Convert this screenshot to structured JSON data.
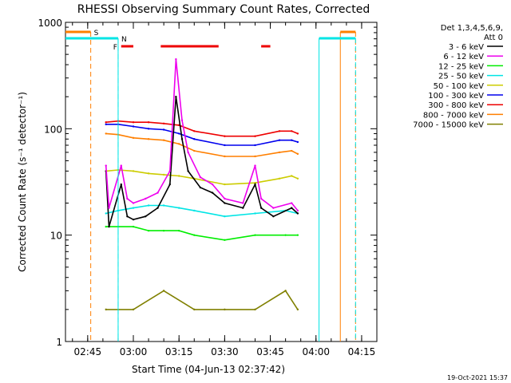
{
  "chart_data": {
    "type": "line",
    "title": "RHESSI Observing Summary Count Rates, Corrected",
    "xlabel": "Start Time (04-Jun-13 02:37:42)",
    "ylabel": "Corrected Count Rate (s⁻¹ detector⁻¹)",
    "x_ticks": [
      "02:45",
      "03:00",
      "03:15",
      "03:30",
      "03:45",
      "04:00",
      "04:15"
    ],
    "x_range": [
      "02:37:42",
      "04:20:00"
    ],
    "y_scale": "log",
    "ylim": [
      1,
      1000
    ],
    "y_ticks": [
      "1",
      "10",
      "100",
      "1000"
    ],
    "legend_header": [
      "Det 1,3,4,5,6,9,",
      "Att 0"
    ],
    "legend_position": "right",
    "timestamp": "19-Oct-2021 15:37",
    "flags": {
      "S": {
        "label": "S",
        "color": "#ff7f00",
        "start": "02:37:42",
        "end": "02:46",
        "end2_start": "04:08",
        "end2_end": "04:13"
      },
      "N": {
        "label": "N",
        "color": "#00e5e5",
        "start": "02:37:42",
        "end": "02:55",
        "end2_start": "04:01",
        "end2_end": "04:13"
      },
      "F": {
        "label": "F",
        "color": "#ee0000",
        "segments": [
          [
            "02:56",
            "03:00"
          ],
          [
            "03:09",
            "03:28"
          ],
          [
            "03:42",
            "03:45"
          ]
        ]
      }
    },
    "series": [
      {
        "name": "3 - 6 keV",
        "color": "#000000",
        "points": [
          [
            "02:51",
            40
          ],
          [
            "02:52",
            12
          ],
          [
            "02:56",
            30
          ],
          [
            "02:58",
            15
          ],
          [
            "03:00",
            14
          ],
          [
            "03:04",
            15
          ],
          [
            "03:08",
            18
          ],
          [
            "03:12",
            30
          ],
          [
            "03:14",
            200
          ],
          [
            "03:16",
            80
          ],
          [
            "03:18",
            40
          ],
          [
            "03:22",
            28
          ],
          [
            "03:26",
            25
          ],
          [
            "03:30",
            20
          ],
          [
            "03:36",
            18
          ],
          [
            "03:40",
            30
          ],
          [
            "03:42",
            18
          ],
          [
            "03:46",
            15
          ],
          [
            "03:52",
            18
          ],
          [
            "03:54",
            16
          ]
        ]
      },
      {
        "name": "6 - 12 keV",
        "color": "#ee00ee",
        "points": [
          [
            "02:51",
            45
          ],
          [
            "02:52",
            18
          ],
          [
            "02:56",
            45
          ],
          [
            "02:58",
            22
          ],
          [
            "03:00",
            20
          ],
          [
            "03:04",
            22
          ],
          [
            "03:08",
            25
          ],
          [
            "03:12",
            40
          ],
          [
            "03:14",
            450
          ],
          [
            "03:16",
            120
          ],
          [
            "03:18",
            60
          ],
          [
            "03:22",
            35
          ],
          [
            "03:26",
            30
          ],
          [
            "03:30",
            22
          ],
          [
            "03:36",
            20
          ],
          [
            "03:40",
            45
          ],
          [
            "03:42",
            22
          ],
          [
            "03:46",
            18
          ],
          [
            "03:52",
            20
          ],
          [
            "03:54",
            17
          ]
        ]
      },
      {
        "name": "12 - 25 keV",
        "color": "#00ee00",
        "points": [
          [
            "02:51",
            12
          ],
          [
            "02:55",
            12
          ],
          [
            "03:00",
            12
          ],
          [
            "03:05",
            11
          ],
          [
            "03:10",
            11
          ],
          [
            "03:15",
            11
          ],
          [
            "03:20",
            10
          ],
          [
            "03:30",
            9
          ],
          [
            "03:40",
            10
          ],
          [
            "03:50",
            10
          ],
          [
            "03:54",
            10
          ]
        ]
      },
      {
        "name": "25 - 50 keV",
        "color": "#00e5e5",
        "points": [
          [
            "02:51",
            16
          ],
          [
            "02:55",
            17
          ],
          [
            "03:00",
            18
          ],
          [
            "03:05",
            19
          ],
          [
            "03:10",
            19
          ],
          [
            "03:15",
            18
          ],
          [
            "03:20",
            17
          ],
          [
            "03:30",
            15
          ],
          [
            "03:40",
            16
          ],
          [
            "03:50",
            17
          ],
          [
            "03:54",
            16
          ]
        ]
      },
      {
        "name": "50 - 100 keV",
        "color": "#cccc00",
        "points": [
          [
            "02:51",
            40
          ],
          [
            "02:55",
            41
          ],
          [
            "03:00",
            40
          ],
          [
            "03:05",
            38
          ],
          [
            "03:10",
            37
          ],
          [
            "03:15",
            36
          ],
          [
            "03:20",
            34
          ],
          [
            "03:30",
            30
          ],
          [
            "03:40",
            31
          ],
          [
            "03:48",
            34
          ],
          [
            "03:52",
            36
          ],
          [
            "03:54",
            34
          ]
        ]
      },
      {
        "name": "100 - 300 keV",
        "color": "#0000ee",
        "points": [
          [
            "02:51",
            110
          ],
          [
            "02:55",
            110
          ],
          [
            "03:00",
            105
          ],
          [
            "03:05",
            100
          ],
          [
            "03:10",
            98
          ],
          [
            "03:15",
            90
          ],
          [
            "03:20",
            80
          ],
          [
            "03:30",
            70
          ],
          [
            "03:40",
            70
          ],
          [
            "03:48",
            78
          ],
          [
            "03:52",
            78
          ],
          [
            "03:54",
            75
          ]
        ]
      },
      {
        "name": "300 - 800 keV",
        "color": "#ee0000",
        "points": [
          [
            "02:51",
            115
          ],
          [
            "02:55",
            118
          ],
          [
            "03:00",
            115
          ],
          [
            "03:05",
            115
          ],
          [
            "03:10",
            112
          ],
          [
            "03:15",
            108
          ],
          [
            "03:20",
            95
          ],
          [
            "03:30",
            85
          ],
          [
            "03:40",
            85
          ],
          [
            "03:48",
            95
          ],
          [
            "03:52",
            95
          ],
          [
            "03:54",
            90
          ]
        ]
      },
      {
        "name": "800 - 7000 keV",
        "color": "#ff7f00",
        "points": [
          [
            "02:51",
            90
          ],
          [
            "02:55",
            88
          ],
          [
            "03:00",
            82
          ],
          [
            "03:05",
            80
          ],
          [
            "03:10",
            78
          ],
          [
            "03:15",
            72
          ],
          [
            "03:20",
            62
          ],
          [
            "03:30",
            55
          ],
          [
            "03:40",
            55
          ],
          [
            "03:48",
            60
          ],
          [
            "03:52",
            62
          ],
          [
            "03:54",
            58
          ]
        ]
      },
      {
        "name": "7000 - 15000 keV",
        "color": "#808000",
        "points": [
          [
            "02:51",
            2
          ],
          [
            "03:00",
            2
          ],
          [
            "03:10",
            3
          ],
          [
            "03:20",
            2
          ],
          [
            "03:30",
            2
          ],
          [
            "03:40",
            2
          ],
          [
            "03:50",
            3
          ],
          [
            "03:54",
            2
          ]
        ]
      }
    ]
  }
}
